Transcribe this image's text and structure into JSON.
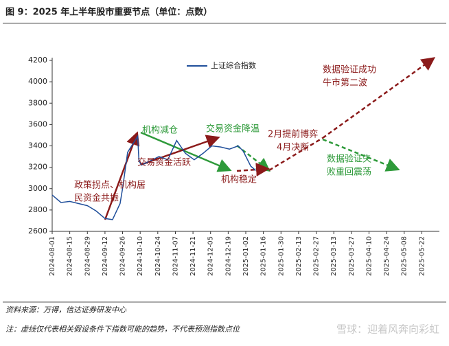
{
  "chart_data": {
    "type": "line",
    "title": "图 9：2025 年上半年股市重要节点（单位：点数）",
    "series": [
      {
        "name": "上证综合指数",
        "color": "#1f4e9a",
        "x": [
          "2024-08-01",
          "2024-08-08",
          "2024-08-15",
          "2024-08-22",
          "2024-08-29",
          "2024-09-05",
          "2024-09-12",
          "2024-09-18",
          "2024-09-24",
          "2024-09-26",
          "2024-09-30",
          "2024-10-08",
          "2024-10-09",
          "2024-10-11",
          "2024-10-18",
          "2024-10-25",
          "2024-11-01",
          "2024-11-08",
          "2024-11-15",
          "2024-11-22",
          "2024-11-29",
          "2024-12-06",
          "2024-12-13",
          "2024-12-20",
          "2024-12-27",
          "2024-12-31",
          "2025-01-06",
          "2025-01-10"
        ],
        "values": [
          2940,
          2870,
          2880,
          2860,
          2840,
          2790,
          2720,
          2710,
          2860,
          3000,
          3340,
          3490,
          3260,
          3220,
          3260,
          3300,
          3270,
          3450,
          3330,
          3270,
          3330,
          3400,
          3390,
          3370,
          3400,
          3350,
          3210,
          3170
        ]
      }
    ],
    "xlim": [
      "2024-08-01",
      "2025-06-05"
    ],
    "xticks": [
      "2024-08-01",
      "2024-08-15",
      "2024-08-29",
      "2024-09-12",
      "2024-09-26",
      "2024-10-10",
      "2024-10-24",
      "2024-11-07",
      "2024-11-21",
      "2024-12-05",
      "2024-12-19",
      "2025-01-02",
      "2025-01-16",
      "2025-01-30",
      "2025-02-13",
      "2025-02-27",
      "2025-03-13",
      "2025-03-27",
      "2025-04-10",
      "2025-04-24",
      "2025-05-08",
      "2025-05-22"
    ],
    "ylim": [
      2600,
      4200
    ],
    "yticks": [
      2600,
      2800,
      3000,
      3200,
      3400,
      3600,
      3800,
      4000,
      4200
    ],
    "annotations": [
      {
        "lines": [
          "政策拐点、机构居",
          "民资金共振"
        ]
      },
      {
        "lines": [
          "机构减仓"
        ]
      },
      {
        "lines": [
          "交易资金降温"
        ]
      },
      {
        "lines": [
          "交易资金活跃"
        ]
      },
      {
        "lines": [
          "机构稳定"
        ]
      },
      {
        "lines": [
          "2月提前博弈",
          "4月决断"
        ]
      },
      {
        "lines": [
          "数据验证成功",
          "牛市第二波"
        ]
      },
      {
        "lines": [
          "数据验证失",
          "败重回震荡"
        ]
      }
    ],
    "source": "资料来源：万得，信达证券研发中心",
    "note": "注：虚线仅代表相关假设条件下指数可能的趋势，不代表预测指数点位",
    "watermark": "雪球：迎着风奔向彩虹"
  }
}
